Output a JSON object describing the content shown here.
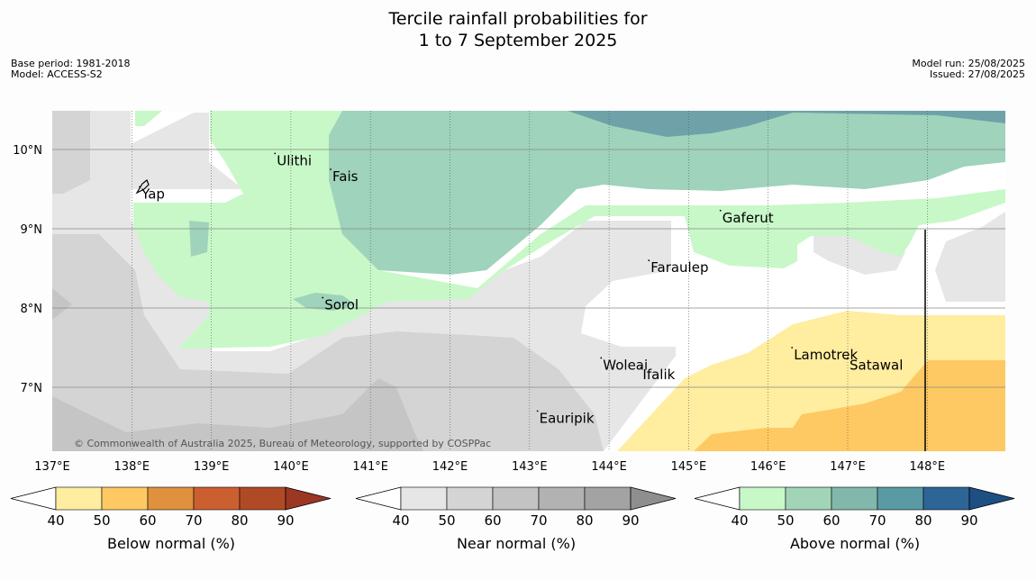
{
  "title": {
    "line1": "Tercile rainfall probabilities for",
    "line2": "1 to 7 September 2025"
  },
  "meta_left": {
    "line1": "Base period: 1981-2018",
    "line2": "Model: ACCESS-S2"
  },
  "meta_right": {
    "line1": "Model run: 25/08/2025",
    "line2": "Issued: 27/08/2025"
  },
  "map": {
    "lon_range": [
      137,
      149
    ],
    "lat_range": [
      6.2,
      10.5
    ],
    "lon_ticks": [
      "137°E",
      "138°E",
      "139°E",
      "140°E",
      "141°E",
      "142°E",
      "143°E",
      "144°E",
      "145°E",
      "146°E",
      "147°E",
      "148°E"
    ],
    "lat_ticks": [
      "10°N",
      "9°N",
      "8°N",
      "7°N"
    ],
    "copyright": "© Commonwealth of Australia 2025, Bureau of Meteorology, supported by COSPPac",
    "places": [
      {
        "name": "Ulithi",
        "lon": 139.8,
        "lat": 9.95
      },
      {
        "name": "Fais",
        "lon": 140.5,
        "lat": 9.75
      },
      {
        "name": "Yap",
        "lon": 138.1,
        "lat": 9.53
      },
      {
        "name": "Gaferut",
        "lon": 145.4,
        "lat": 9.23
      },
      {
        "name": "Faraulep",
        "lon": 144.5,
        "lat": 8.6
      },
      {
        "name": "Sorol",
        "lon": 140.4,
        "lat": 8.13
      },
      {
        "name": "Woleai",
        "lon": 143.9,
        "lat": 7.37
      },
      {
        "name": "Ifalik",
        "lon": 144.4,
        "lat": 7.25
      },
      {
        "name": "Lamotrek",
        "lon": 146.3,
        "lat": 7.5
      },
      {
        "name": "Satawal",
        "lon": 147.0,
        "lat": 7.37
      },
      {
        "name": "Eauripik",
        "lon": 143.1,
        "lat": 6.7
      }
    ]
  },
  "colorbars": [
    {
      "label": "Below normal (%)",
      "ticks": [
        "40",
        "50",
        "60",
        "70",
        "80",
        "90"
      ],
      "colors": [
        "#ffeda0",
        "#fec962",
        "#e0913e",
        "#cc5f30",
        "#b04a25",
        "#9b3723"
      ]
    },
    {
      "label": "Near normal (%)",
      "ticks": [
        "40",
        "50",
        "60",
        "70",
        "80",
        "90"
      ],
      "colors": [
        "#e6e6e6",
        "#d4d4d4",
        "#c3c3c3",
        "#b2b2b2",
        "#a3a3a3",
        "#8e8e8e"
      ]
    },
    {
      "label": "Above normal (%)",
      "ticks": [
        "40",
        "50",
        "60",
        "70",
        "80",
        "90"
      ],
      "colors": [
        "#c8f8c8",
        "#a2d5b8",
        "#82b8ab",
        "#5a9aa4",
        "#2e6597",
        "#1e4f82"
      ]
    }
  ]
}
